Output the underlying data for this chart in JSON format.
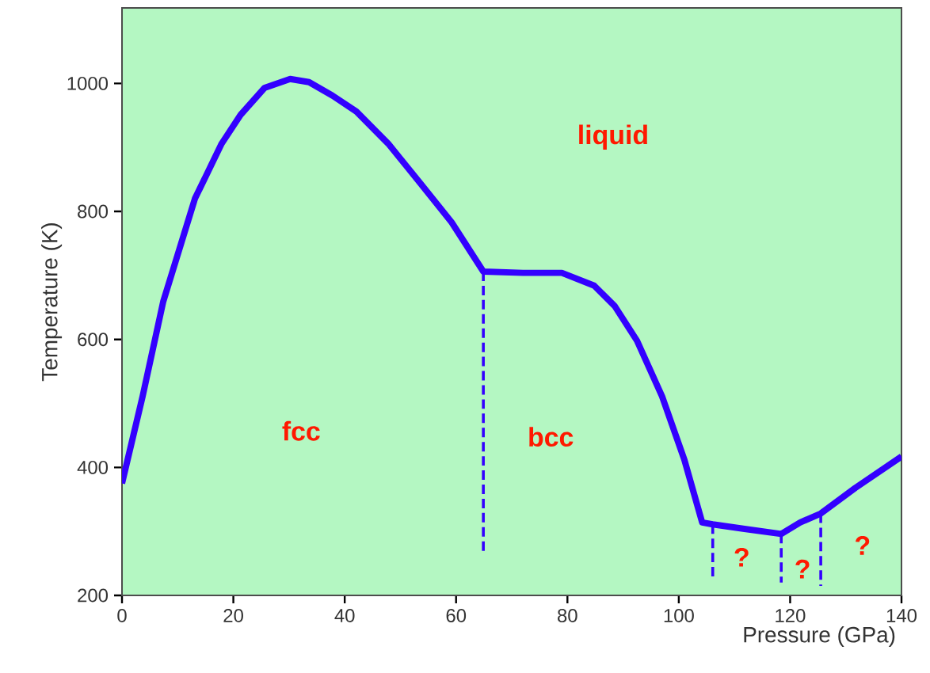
{
  "chart_data": {
    "type": "line",
    "xlabel": "Pressure (GPa)",
    "ylabel": "Temperature (K)",
    "xlim": [
      0,
      140
    ],
    "ylim": [
      200,
      1118
    ],
    "xticks": [
      0,
      20,
      40,
      60,
      80,
      100,
      120,
      140
    ],
    "yticks": [
      200,
      400,
      600,
      800,
      1000
    ],
    "marker": "none",
    "series": [
      {
        "color": "#3300ff",
        "line_style": "solid",
        "x": [
          0,
          3.7,
          7.4,
          13.1,
          17.9,
          21.3,
          25.6,
          30.2,
          33.6,
          37.8,
          42.1,
          47.8,
          53.5,
          59.2,
          64.9,
          72,
          79,
          84.8,
          88.5,
          92.5,
          97,
          101,
          104.2,
          106.1,
          111.8,
          118.4,
          121.8,
          125.5,
          131.7,
          140
        ],
        "values": [
          375,
          511,
          659,
          820,
          906,
          951,
          993,
          1007,
          1002,
          981,
          956,
          906,
          845,
          783,
          706,
          704,
          704,
          684,
          652,
          598,
          511,
          412,
          314,
          311,
          304,
          296,
          314,
          328,
          368,
          417
        ]
      },
      {
        "color": "#3300ff",
        "line_style": "dashed",
        "x": [
          64.9,
          64.9
        ],
        "values": [
          706,
          264
        ]
      },
      {
        "color": "#3300ff",
        "line_style": "dashed",
        "x": [
          106.1,
          106.1
        ],
        "values": [
          311,
          225
        ]
      },
      {
        "color": "#3300ff",
        "line_style": "dashed",
        "x": [
          118.4,
          118.4
        ],
        "values": [
          296,
          220
        ]
      },
      {
        "color": "#3300ff",
        "line_style": "dashed",
        "x": [
          125.5,
          125.5
        ],
        "values": [
          328,
          215
        ]
      }
    ],
    "annotations": [
      "fcc",
      "bcc",
      "liquid",
      "?",
      "?",
      "?"
    ]
  }
}
